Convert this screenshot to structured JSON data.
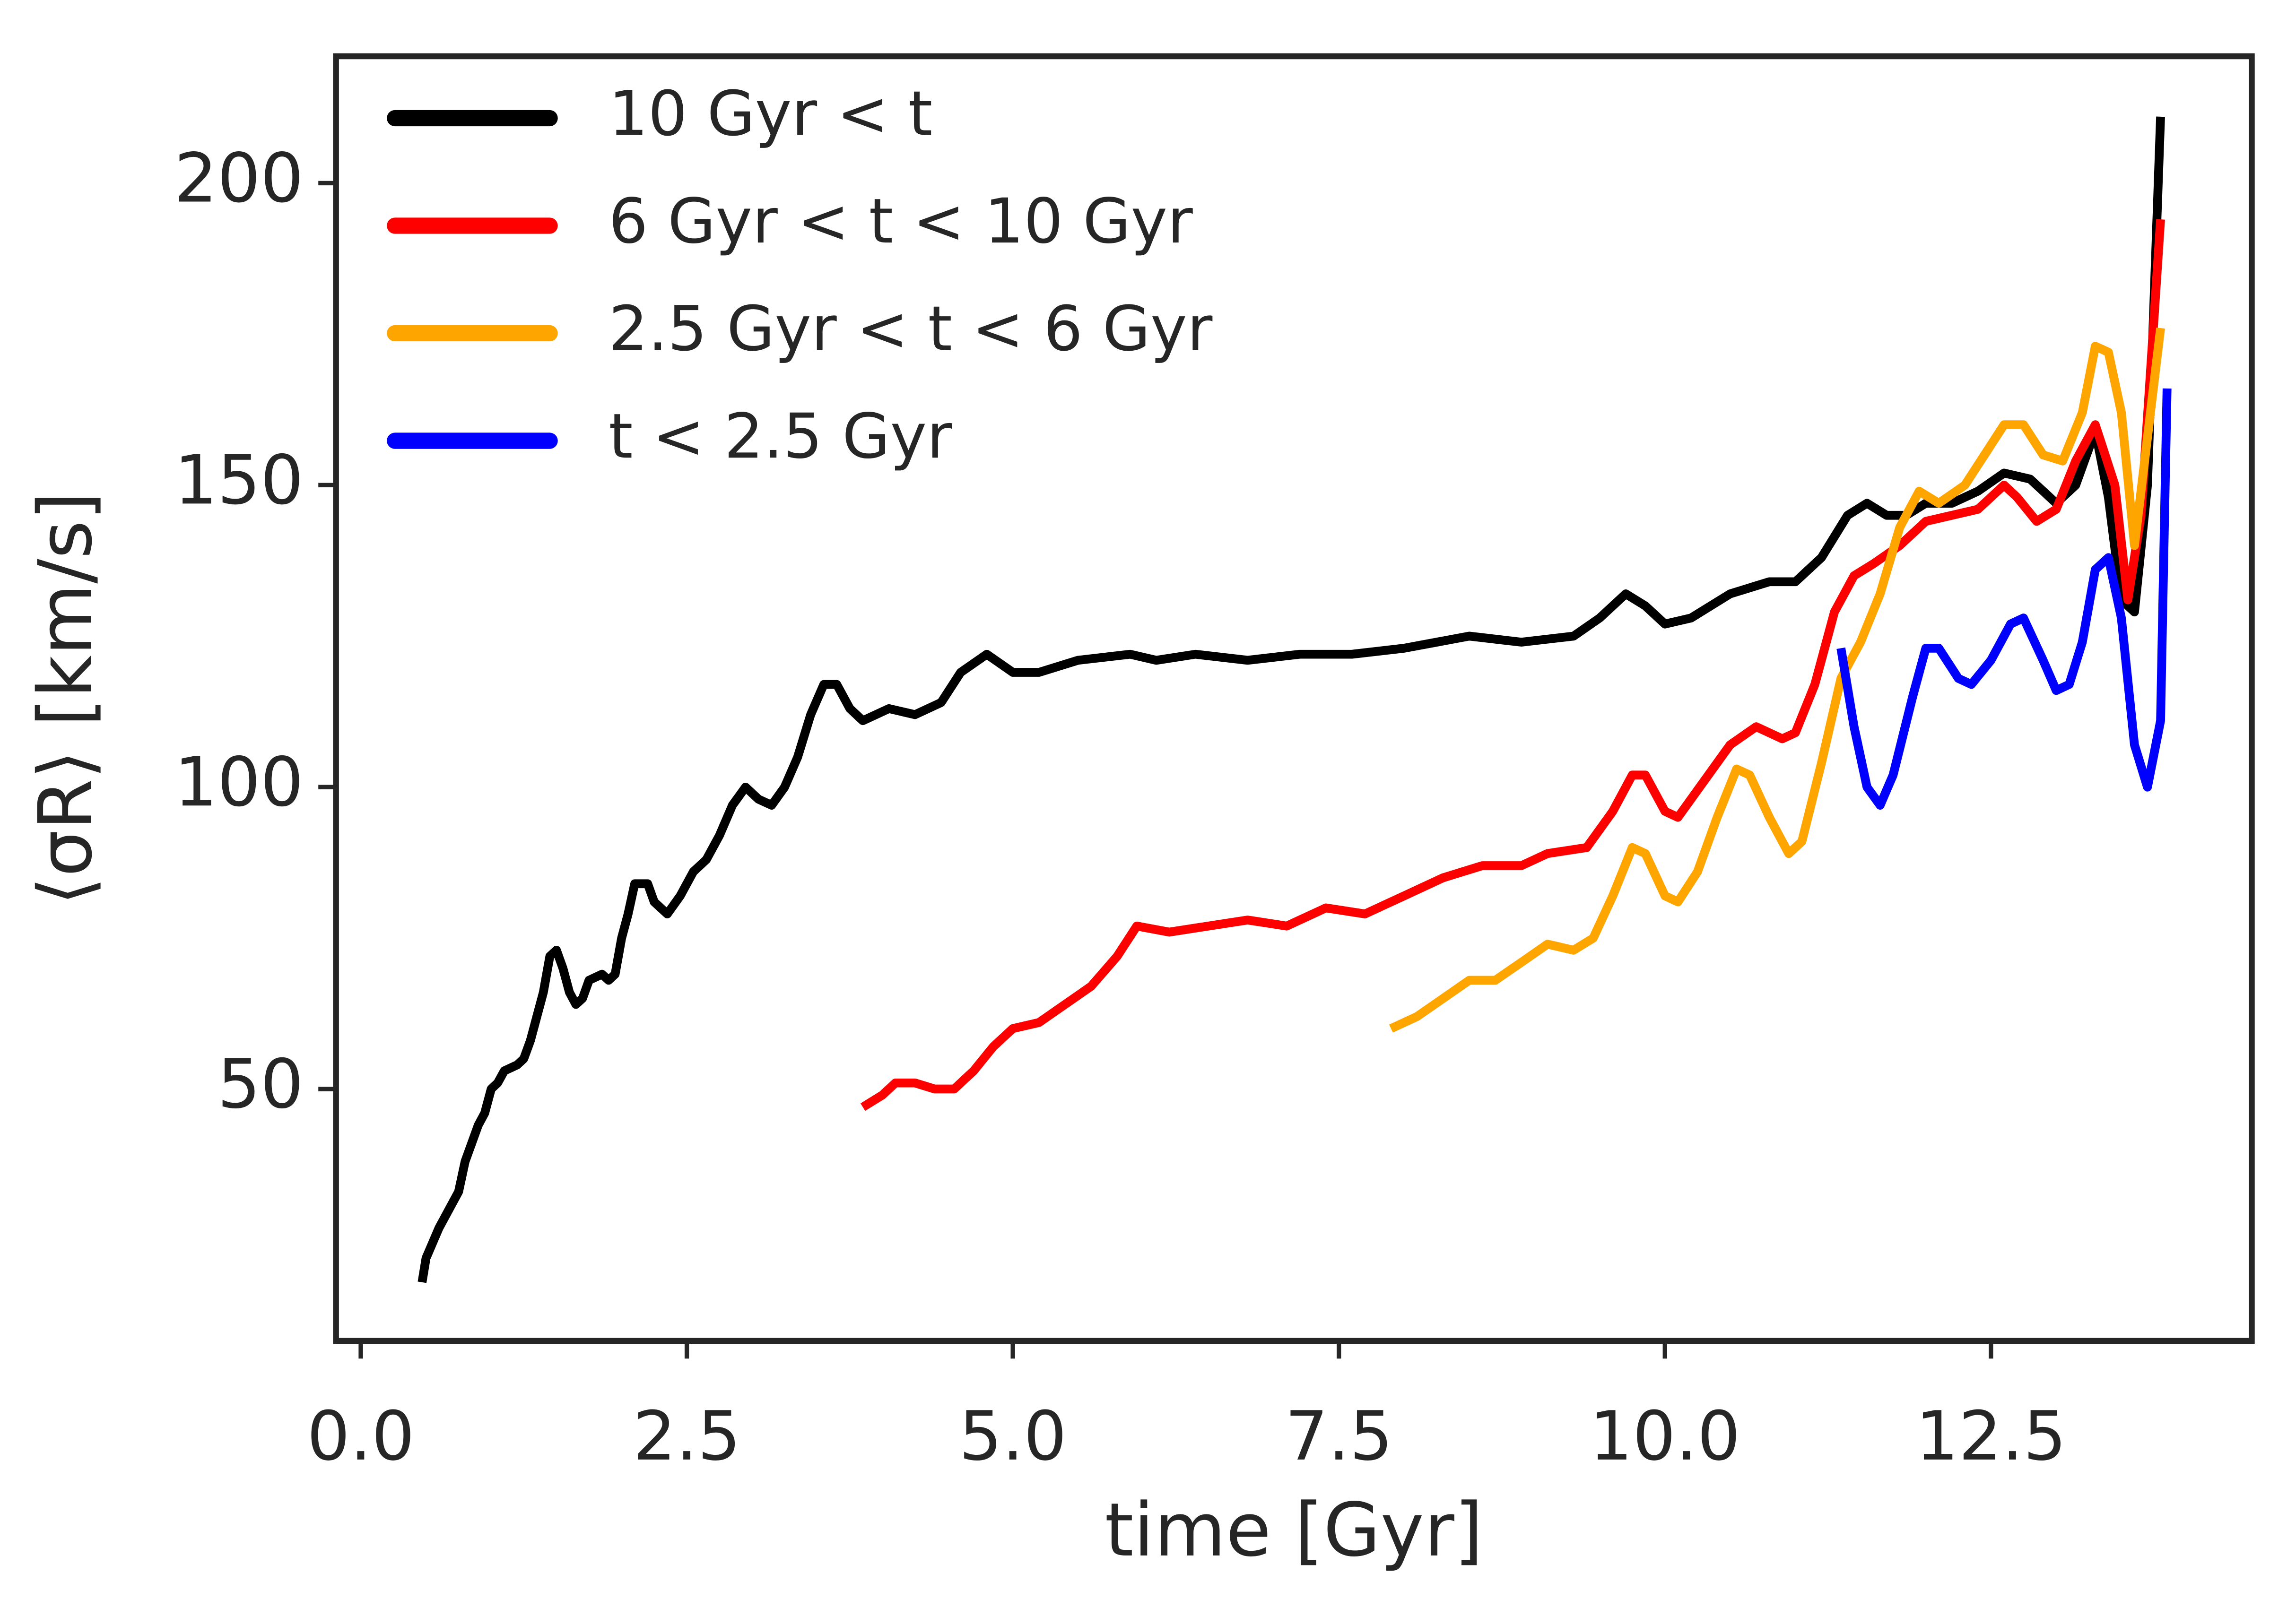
{
  "chart_data": {
    "type": "line",
    "xlabel": "time [Gyr]",
    "ylabel": "⟨σR⟩ [km/s]",
    "xlim": [
      -0.19,
      14.5
    ],
    "ylim": [
      8.3,
      221
    ],
    "xticks": [
      {
        "value": 0,
        "label": "0.0"
      },
      2.5,
      {
        "value": 5,
        "label": "5.0"
      },
      7.5,
      {
        "value": 10,
        "label": "10.0"
      },
      12.5
    ],
    "yticks": [
      50,
      100,
      150,
      200
    ],
    "grid": false,
    "legend": "upper left",
    "series": [
      {
        "name": "10 Gyr < t",
        "color": "#000000",
        "x": [
          0.47,
          0.5,
          0.6,
          0.75,
          0.8,
          0.9,
          0.95,
          1.0,
          1.05,
          1.1,
          1.2,
          1.25,
          1.3,
          1.35,
          1.4,
          1.45,
          1.5,
          1.55,
          1.6,
          1.65,
          1.7,
          1.75,
          1.85,
          1.9,
          1.95,
          2.0,
          2.05,
          2.1,
          2.2,
          2.25,
          2.35,
          2.45,
          2.55,
          2.65,
          2.75,
          2.85,
          2.95,
          3.05,
          3.15,
          3.25,
          3.35,
          3.45,
          3.55,
          3.65,
          3.75,
          3.85,
          4.05,
          4.25,
          4.45,
          4.6,
          4.8,
          5.0,
          5.2,
          5.5,
          5.9,
          6.1,
          6.4,
          6.8,
          7.2,
          7.6,
          8.0,
          8.5,
          8.9,
          9.3,
          9.5,
          9.7,
          9.85,
          10.0,
          10.2,
          10.5,
          10.8,
          11.0,
          11.2,
          11.4,
          11.55,
          11.7,
          11.85,
          12.0,
          12.2,
          12.4,
          12.6,
          12.8,
          13.0,
          13.15,
          13.3,
          13.4,
          13.5,
          13.6,
          13.7,
          13.8
        ],
        "values": [
          18,
          22,
          27,
          33,
          38,
          44,
          46,
          50,
          51,
          53,
          54,
          55,
          58,
          62,
          66,
          72,
          73,
          70,
          66,
          64,
          65,
          68,
          69,
          68,
          69,
          75,
          79,
          84,
          84,
          81,
          79,
          82,
          86,
          88,
          92,
          97,
          100,
          98,
          97,
          100,
          105,
          112,
          117,
          117,
          113,
          111,
          113,
          112,
          114,
          119,
          122,
          119,
          119,
          121,
          122,
          121,
          122,
          121,
          122,
          122,
          123,
          125,
          124,
          125,
          128,
          132,
          130,
          127,
          128,
          132,
          134,
          134,
          138,
          145,
          147,
          145,
          145,
          147,
          147,
          149,
          152,
          151,
          147,
          150,
          159,
          148,
          131,
          129,
          150,
          211
        ]
      },
      {
        "name": "6 Gyr < t < 10 Gyr",
        "color": "#ff0000",
        "x": [
          3.85,
          4.0,
          4.1,
          4.25,
          4.4,
          4.55,
          4.7,
          4.85,
          5.0,
          5.2,
          5.4,
          5.6,
          5.8,
          5.95,
          6.2,
          6.5,
          6.8,
          7.1,
          7.4,
          7.7,
          8.0,
          8.3,
          8.6,
          8.9,
          9.1,
          9.4,
          9.6,
          9.75,
          9.85,
          10.0,
          10.1,
          10.3,
          10.5,
          10.7,
          10.9,
          11.0,
          11.15,
          11.3,
          11.45,
          11.6,
          11.8,
          12.0,
          12.2,
          12.4,
          12.6,
          12.7,
          12.85,
          13.0,
          13.15,
          13.3,
          13.45,
          13.55,
          13.65,
          13.8
        ],
        "values": [
          47,
          49,
          51,
          51,
          50,
          50,
          53,
          57,
          60,
          61,
          64,
          67,
          72,
          77,
          76,
          77,
          78,
          77,
          80,
          79,
          82,
          85,
          87,
          87,
          89,
          90,
          96,
          102,
          102,
          96,
          95,
          101,
          107,
          110,
          108,
          109,
          117,
          129,
          135,
          137,
          140,
          144,
          145,
          146,
          150,
          148,
          144,
          146,
          154,
          160,
          150,
          131,
          145,
          194
        ]
      },
      {
        "name": "2.5 Gyr < t < 6 Gyr",
        "color": "#ffa500",
        "x": [
          7.9,
          8.1,
          8.3,
          8.5,
          8.7,
          8.9,
          9.1,
          9.3,
          9.45,
          9.6,
          9.75,
          9.85,
          10.0,
          10.1,
          10.25,
          10.4,
          10.55,
          10.65,
          10.8,
          10.95,
          11.05,
          11.2,
          11.35,
          11.5,
          11.65,
          11.8,
          11.95,
          12.1,
          12.3,
          12.45,
          12.6,
          12.75,
          12.9,
          13.05,
          13.2,
          13.3,
          13.4,
          13.5,
          13.6,
          13.8
        ],
        "values": [
          60,
          62,
          65,
          68,
          68,
          71,
          74,
          73,
          75,
          82,
          90,
          89,
          82,
          81,
          86,
          95,
          103,
          102,
          95,
          89,
          91,
          104,
          118,
          124,
          132,
          143,
          149,
          147,
          150,
          155,
          160,
          160,
          155,
          154,
          162,
          173,
          172,
          162,
          140,
          176
        ]
      },
      {
        "name": "t < 2.5 Gyr",
        "color": "#0000ff",
        "x": [
          11.35,
          11.45,
          11.55,
          11.65,
          11.75,
          11.9,
          12.0,
          12.1,
          12.25,
          12.35,
          12.5,
          12.65,
          12.75,
          12.9,
          13.0,
          13.1,
          13.2,
          13.3,
          13.4,
          13.5,
          13.6,
          13.7,
          13.8,
          13.85
        ],
        "values": [
          123,
          110,
          100,
          97,
          102,
          115,
          123,
          123,
          118,
          117,
          121,
          127,
          128,
          121,
          116,
          117,
          124,
          136,
          138,
          128,
          107,
          100,
          111,
          166
        ]
      }
    ]
  }
}
